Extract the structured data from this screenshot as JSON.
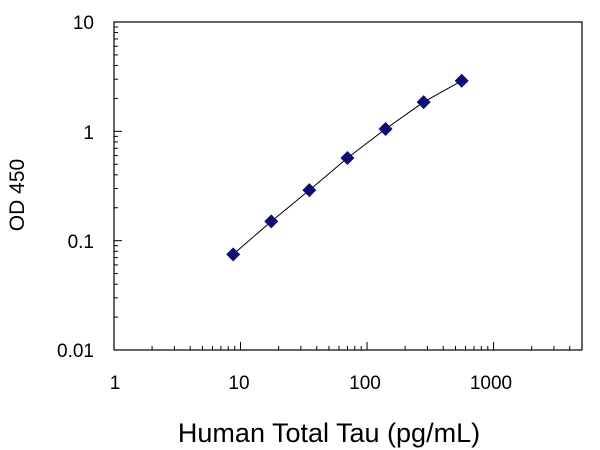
{
  "chart_data": {
    "type": "scatter",
    "title": "",
    "xlabel": "Human Total Tau (pg/mL)",
    "ylabel": "OD 450",
    "x_scale": "log",
    "y_scale": "log",
    "xlim": [
      1,
      5000
    ],
    "ylim": [
      0.01,
      10
    ],
    "x_tick_labels": [
      "1",
      "10",
      "100",
      "1000"
    ],
    "y_tick_labels": [
      "10",
      "1",
      "0.1",
      "0.01"
    ],
    "x_tick_values": [
      1,
      10,
      100,
      1000
    ],
    "y_tick_values": [
      10,
      1,
      0.1,
      0.01
    ],
    "grid": false,
    "legend": "none",
    "marker": "diamond",
    "marker_color": "#0d0d73",
    "line_color": "#000000",
    "series": [
      {
        "x": [
          8.75,
          17.5,
          35,
          70,
          140,
          280,
          560
        ],
        "y": [
          0.075,
          0.15,
          0.29,
          0.57,
          1.05,
          1.85,
          2.9
        ]
      }
    ]
  }
}
